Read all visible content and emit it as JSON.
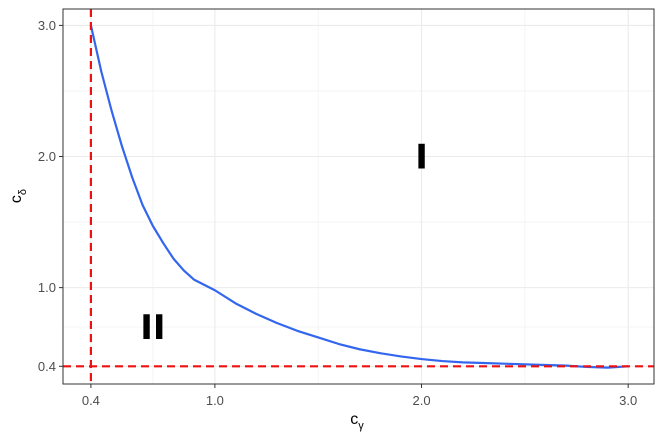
{
  "chart_data": {
    "type": "line",
    "xlabel": {
      "base": "c",
      "subscript": "γ"
    },
    "ylabel": {
      "base": "c",
      "subscript": "δ"
    },
    "xlim": [
      0.265,
      3.125
    ],
    "ylim": [
      0.265,
      3.125
    ],
    "x_ticks": [
      0.4,
      1.0,
      2.0,
      3.0
    ],
    "x_tick_labels": [
      "0.4",
      "1.0",
      "2.0",
      "3.0"
    ],
    "y_ticks": [
      0.4,
      1.0,
      2.0,
      3.0
    ],
    "y_tick_labels": [
      "0.4",
      "1.0",
      "2.0",
      "3.0"
    ],
    "grid": true,
    "legend": "none",
    "series": [
      {
        "color": "#3366ee",
        "x": [
          0.4,
          0.45,
          0.5,
          0.55,
          0.6,
          0.65,
          0.7,
          0.75,
          0.8,
          0.85,
          0.9,
          0.95,
          1.0,
          1.1,
          1.2,
          1.3,
          1.4,
          1.5,
          1.6,
          1.7,
          1.8,
          1.9,
          2.0,
          2.1,
          2.2,
          2.3,
          2.4,
          2.5,
          2.6,
          2.7,
          2.8,
          2.9,
          3.0
        ],
        "y": [
          3.0,
          2.65,
          2.35,
          2.08,
          1.84,
          1.63,
          1.47,
          1.34,
          1.22,
          1.13,
          1.06,
          1.02,
          0.98,
          0.88,
          0.8,
          0.73,
          0.67,
          0.62,
          0.57,
          0.53,
          0.5,
          0.475,
          0.455,
          0.44,
          0.43,
          0.425,
          0.42,
          0.415,
          0.41,
          0.405,
          0.395,
          0.39,
          0.4
        ]
      }
    ],
    "reference_lines": [
      {
        "orientation": "vertical",
        "value": 0.4,
        "color": "#ee1111",
        "style": "dashed"
      },
      {
        "orientation": "horizontal",
        "value": 0.4,
        "color": "#ee1111",
        "style": "dashed"
      }
    ],
    "annotations": [
      {
        "text": "I",
        "x": 2.0,
        "y": 2.0
      },
      {
        "text": "II",
        "x": 0.7,
        "y": 0.7
      }
    ]
  }
}
